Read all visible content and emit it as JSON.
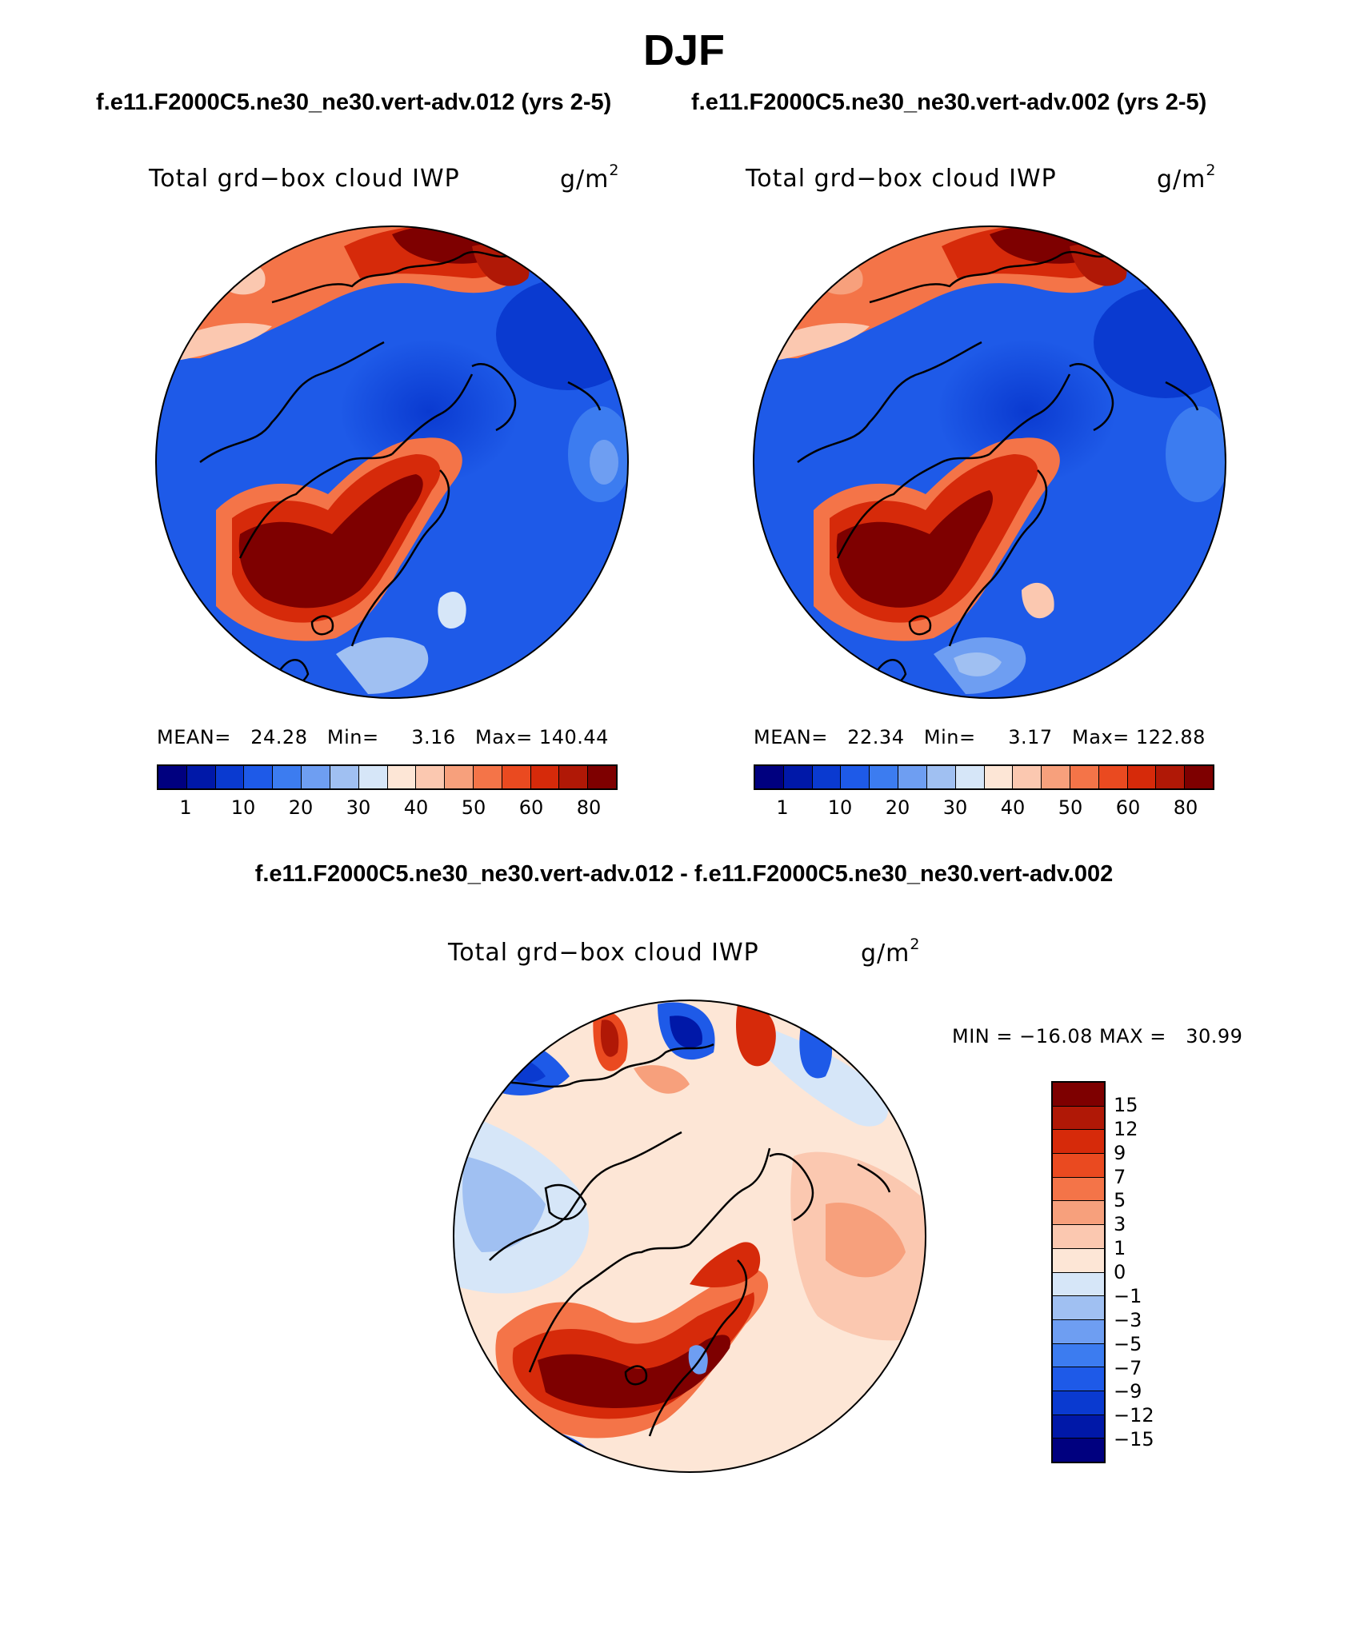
{
  "title": "DJF",
  "case_titles": [
    "f.e11.F2000C5.ne30_ne30.vert-adv.012 (yrs 2-5)",
    "f.e11.F2000C5.ne30_ne30.vert-adv.002 (yrs 2-5)"
  ],
  "diff_title": "f.e11.F2000C5.ne30_ne30.vert-adv.012 - f.e11.F2000C5.ne30_ne30.vert-adv.002",
  "variable_label": "Total grd−box cloud IWP",
  "units_base": "g/m",
  "units_exp": "2",
  "panels": [
    {
      "mean_label": "MEAN=",
      "mean": "24.28",
      "min_label": "Min=",
      "min": "3.16",
      "max_label": "Max=",
      "max": "140.44"
    },
    {
      "mean_label": "MEAN=",
      "mean": "22.34",
      "min_label": "Min=",
      "min": "3.17",
      "max_label": "Max=",
      "max": "122.88"
    }
  ],
  "diff_stats": "MIN = −16.08 MAX =   30.99",
  "field_colorbar": {
    "colors": [
      "#00007f",
      "#0018a8",
      "#0a3ad0",
      "#1e5ae8",
      "#3c7cf0",
      "#6e9ef2",
      "#a0c0f2",
      "#d6e6f8",
      "#fde6d6",
      "#fbc8b0",
      "#f7a07c",
      "#f47448",
      "#ea4a20",
      "#d62a0a",
      "#b01806",
      "#7e0000"
    ],
    "labels": [
      "1",
      "10",
      "20",
      "30",
      "40",
      "50",
      "60",
      "80"
    ]
  },
  "diff_colorbar": {
    "colors": [
      "#7e0000",
      "#b01806",
      "#d62a0a",
      "#ea4a20",
      "#f47448",
      "#f7a07c",
      "#fbc8b0",
      "#fde6d6",
      "#d6e6f8",
      "#a0c0f2",
      "#6e9ef2",
      "#3c7cf0",
      "#1e5ae8",
      "#0a3ad0",
      "#0018a8",
      "#00007f"
    ],
    "labels": [
      "15",
      "12",
      "9",
      "7",
      "5",
      "3",
      "1",
      "0",
      "−1",
      "−3",
      "−5",
      "−7",
      "−9",
      "−12",
      "−15"
    ]
  }
}
